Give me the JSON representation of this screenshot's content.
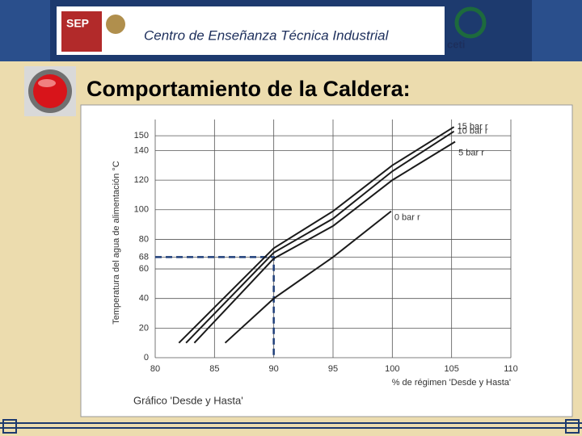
{
  "header": {
    "logo": "SEP",
    "institution": "Centro de Enseñanza Técnica Industrial",
    "logo2": "ceti"
  },
  "slide_title": "Comportamiento de la Caldera:",
  "chart_data": {
    "type": "line",
    "caption": "Gráfico 'Desde y Hasta'",
    "xlabel": "% de régimen 'Desde y Hasta'",
    "ylabel": "Temperatura del agua de alimentación °C",
    "xlim": [
      80,
      110
    ],
    "xticks": [
      80,
      85,
      90,
      95,
      100,
      105,
      110
    ],
    "ylim": [
      0,
      161
    ],
    "yticks": [
      0,
      20,
      40,
      60,
      68,
      80,
      100,
      120,
      140,
      150
    ],
    "grid": true,
    "series": [
      {
        "name": "15 bar r",
        "color": "#1a1a1a",
        "x": [
          82,
          90,
          95,
          100,
          105.2
        ],
        "values": [
          10,
          74,
          99,
          130,
          156
        ]
      },
      {
        "name": "10 bar r",
        "color": "#1a1a1a",
        "x": [
          82.6,
          90,
          95,
          100,
          105.2
        ],
        "values": [
          10,
          71,
          94,
          126,
          153
        ]
      },
      {
        "name": "5 bar r",
        "color": "#1a1a1a",
        "x": [
          83.3,
          90,
          95,
          100,
          105.3
        ],
        "values": [
          10,
          67,
          89,
          120,
          146
        ]
      },
      {
        "name": "0 bar r",
        "color": "#1a1a1a",
        "x": [
          85.9,
          90,
          95,
          99.9
        ],
        "values": [
          10,
          40,
          68,
          99
        ]
      }
    ],
    "guide": {
      "x": 90,
      "y": 68,
      "color": "#1f3f7a"
    }
  }
}
